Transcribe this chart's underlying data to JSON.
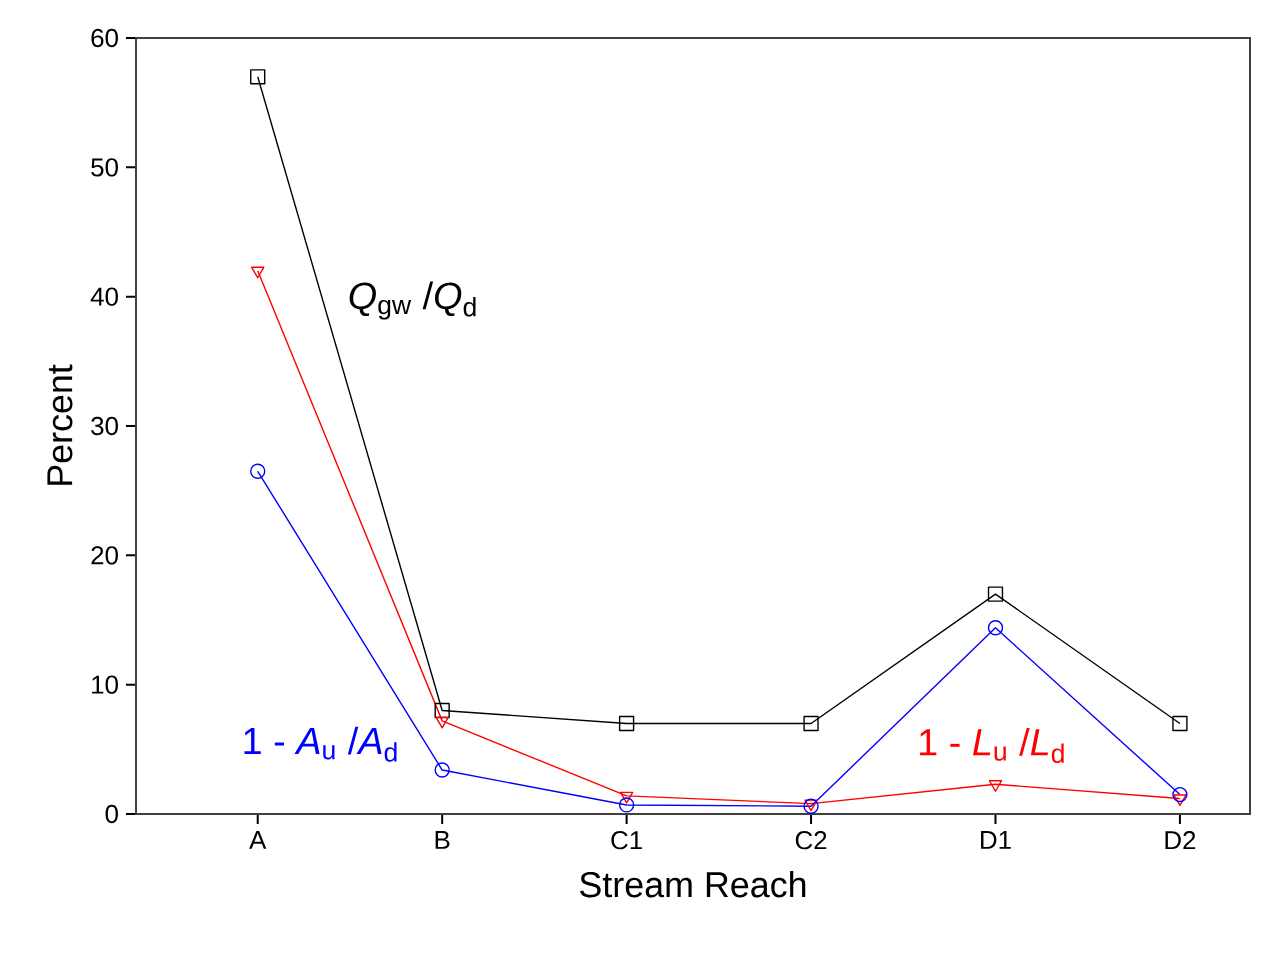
{
  "chart_data": {
    "type": "line",
    "xlabel": "Stream Reach",
    "ylabel": "Percent",
    "categories": [
      "A",
      "B",
      "C1",
      "C2",
      "D1",
      "D2"
    ],
    "ylim": [
      0,
      60
    ],
    "yticks": [
      0,
      10,
      20,
      30,
      40,
      50,
      60
    ],
    "grid": false,
    "legend": false,
    "line_style": "solid",
    "series": [
      {
        "name": "*Q*$_{gw}$ /*Q*$_{d}$",
        "color": "#000000",
        "marker": "square",
        "values": [
          57,
          8,
          7,
          7,
          17,
          7
        ]
      },
      {
        "name": "1 - *L*$_{u}$ /*L*$_{d}$",
        "color": "#ff0000",
        "marker": "triangle",
        "values": [
          42,
          7.2,
          1.4,
          0.8,
          2.3,
          1.2
        ]
      },
      {
        "name": "1 - *A*$_{u}$ /*A*$_{d}$",
        "color": "#0000ff",
        "marker": "circle",
        "values": [
          26.5,
          3.4,
          0.7,
          0.6,
          14.4,
          1.5
        ]
      }
    ]
  }
}
